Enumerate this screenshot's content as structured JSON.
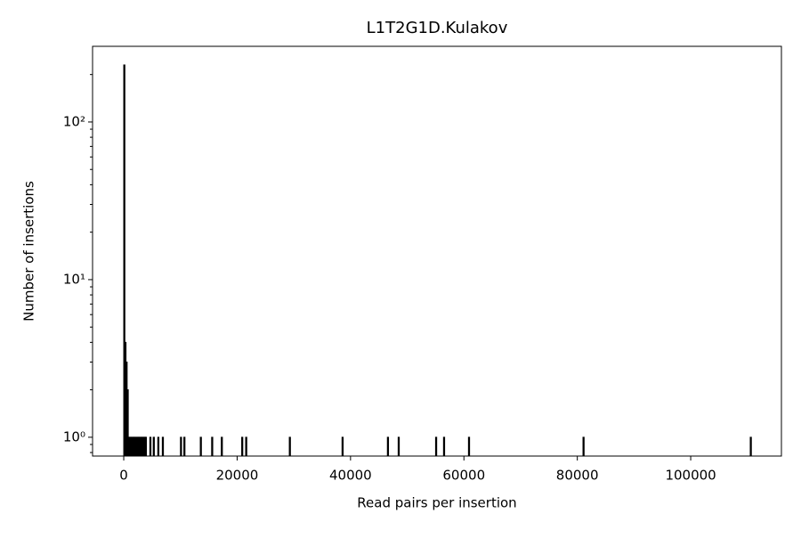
{
  "chart_data": {
    "type": "histogram",
    "title": "L1T2G1D.Kulakov",
    "xlabel": "Read pairs per insertion",
    "ylabel": "Number of insertions",
    "bins": [
      0,
      200,
      400,
      600,
      800,
      1000,
      1200,
      1400,
      1600,
      1800,
      2000,
      2200,
      2400,
      2600,
      2800,
      3000,
      3200,
      3400,
      3600,
      3800,
      4000,
      4600,
      4800,
      5200,
      5400,
      6000,
      6200,
      6800,
      7000,
      10000,
      10200,
      10600,
      10800,
      13500,
      13700,
      15500,
      15700,
      17200,
      17400,
      20800,
      21000,
      21500,
      21700,
      29200,
      29400,
      38500,
      38700,
      46500,
      46700,
      48400,
      48600,
      55000,
      55200,
      56400,
      56600,
      60800,
      61000,
      81000,
      81200,
      110500,
      110700
    ],
    "values": [
      230,
      4,
      3,
      2,
      1,
      1,
      1,
      1,
      1,
      1,
      1,
      1,
      1,
      1,
      1,
      1,
      1,
      1,
      1,
      1,
      0,
      1,
      0,
      1,
      0,
      1,
      0,
      1,
      0,
      1,
      0,
      1,
      0,
      1,
      0,
      1,
      0,
      1,
      0,
      1,
      0,
      1,
      0,
      1,
      0,
      1,
      0,
      1,
      0,
      1,
      0,
      1,
      0,
      1,
      0,
      1,
      0,
      1,
      0,
      1
    ],
    "color": "#000000",
    "xlim": [
      -5500,
      116000
    ],
    "xticks": [
      0,
      20000,
      40000,
      60000,
      80000,
      100000
    ],
    "ylim": [
      0.76,
      302
    ],
    "yscale": "log",
    "yticks": [
      {
        "value": 1,
        "label": "10⁰"
      },
      {
        "value": 10,
        "label": "10¹"
      },
      {
        "value": 100,
        "label": "10²"
      }
    ],
    "yminorticks": [
      0.8,
      0.9,
      2,
      3,
      4,
      5,
      6,
      7,
      8,
      9,
      20,
      30,
      40,
      50,
      60,
      70,
      80,
      90,
      200
    ],
    "grid": false
  }
}
